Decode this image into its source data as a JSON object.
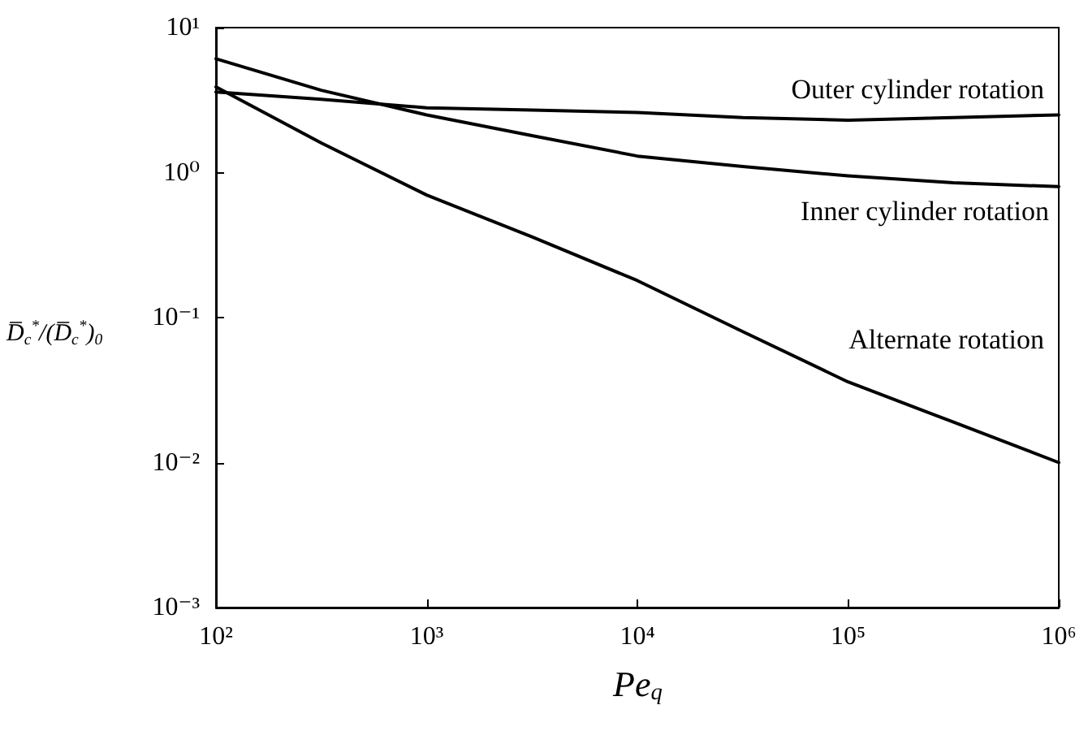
{
  "chart_data": {
    "type": "line",
    "xlabel": "Pe$_{q}$",
    "ylabel": "D̅$_{c}$$^{*}$/(D̅$_{c}$$^{*}$)$_{0}$",
    "log": "xy",
    "xlim": [
      100,
      1000000
    ],
    "ylim": [
      0.001,
      10
    ],
    "xticks": [
      {
        "value": 100,
        "label": "10²"
      },
      {
        "value": 1000,
        "label": "10³"
      },
      {
        "value": 10000,
        "label": "10⁴"
      },
      {
        "value": 100000,
        "label": "10⁵"
      },
      {
        "value": 1000000,
        "label": "10⁶"
      }
    ],
    "yticks": [
      {
        "value": 0.001,
        "label": "10⁻³"
      },
      {
        "value": 0.01,
        "label": "10⁻²"
      },
      {
        "value": 0.1,
        "label": "10⁻¹"
      },
      {
        "value": 1,
        "label": "10⁰"
      },
      {
        "value": 10,
        "label": "10¹"
      }
    ],
    "x": [
      100,
      316,
      1000,
      3162,
      10000,
      31623,
      100000,
      316228,
      1000000
    ],
    "series": [
      {
        "color": "#000000",
        "values": [
          3.6,
          3.2,
          2.8,
          2.7,
          2.6,
          2.4,
          2.3,
          2.4,
          2.5
        ]
      },
      {
        "color": "#000000",
        "values": [
          6.1,
          3.7,
          2.5,
          1.8,
          1.3,
          1.1,
          0.95,
          0.85,
          0.8
        ]
      },
      {
        "color": "#000000",
        "values": [
          3.9,
          1.6,
          0.7,
          0.36,
          0.18,
          0.08,
          0.036,
          0.019,
          0.01
        ]
      }
    ],
    "annotations": [
      "Outer cylinder rotation",
      "Inner cylinder rotation",
      "Alternate rotation"
    ],
    "grid": false,
    "legend": false,
    "marker": "none",
    "line_style": "solid"
  }
}
